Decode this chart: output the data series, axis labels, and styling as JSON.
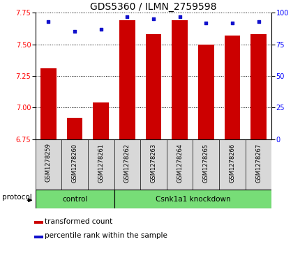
{
  "title": "GDS5360 / ILMN_2759598",
  "samples": [
    "GSM1278259",
    "GSM1278260",
    "GSM1278261",
    "GSM1278262",
    "GSM1278263",
    "GSM1278264",
    "GSM1278265",
    "GSM1278266",
    "GSM1278267"
  ],
  "transformed_count": [
    7.31,
    6.92,
    7.04,
    7.69,
    7.58,
    7.69,
    7.5,
    7.57,
    7.58
  ],
  "percentile_rank": [
    93,
    85,
    87,
    97,
    95,
    97,
    92,
    92,
    93
  ],
  "ylim_left": [
    6.75,
    7.75
  ],
  "ylim_right": [
    0,
    100
  ],
  "yticks_left": [
    6.75,
    7.0,
    7.25,
    7.5,
    7.75
  ],
  "yticks_right": [
    0,
    25,
    50,
    75,
    100
  ],
  "control_count": 3,
  "bar_color": "#CC0000",
  "dot_color": "#1111CC",
  "control_label": "control",
  "knockdown_label": "Csnk1a1 knockdown",
  "protocol_label": "protocol",
  "legend_bar_label": "transformed count",
  "legend_dot_label": "percentile rank within the sample",
  "bg_color": "#d8d8d8",
  "green_color": "#77dd77",
  "title_fontsize": 10,
  "tick_fontsize": 7,
  "label_fontsize": 7.5
}
